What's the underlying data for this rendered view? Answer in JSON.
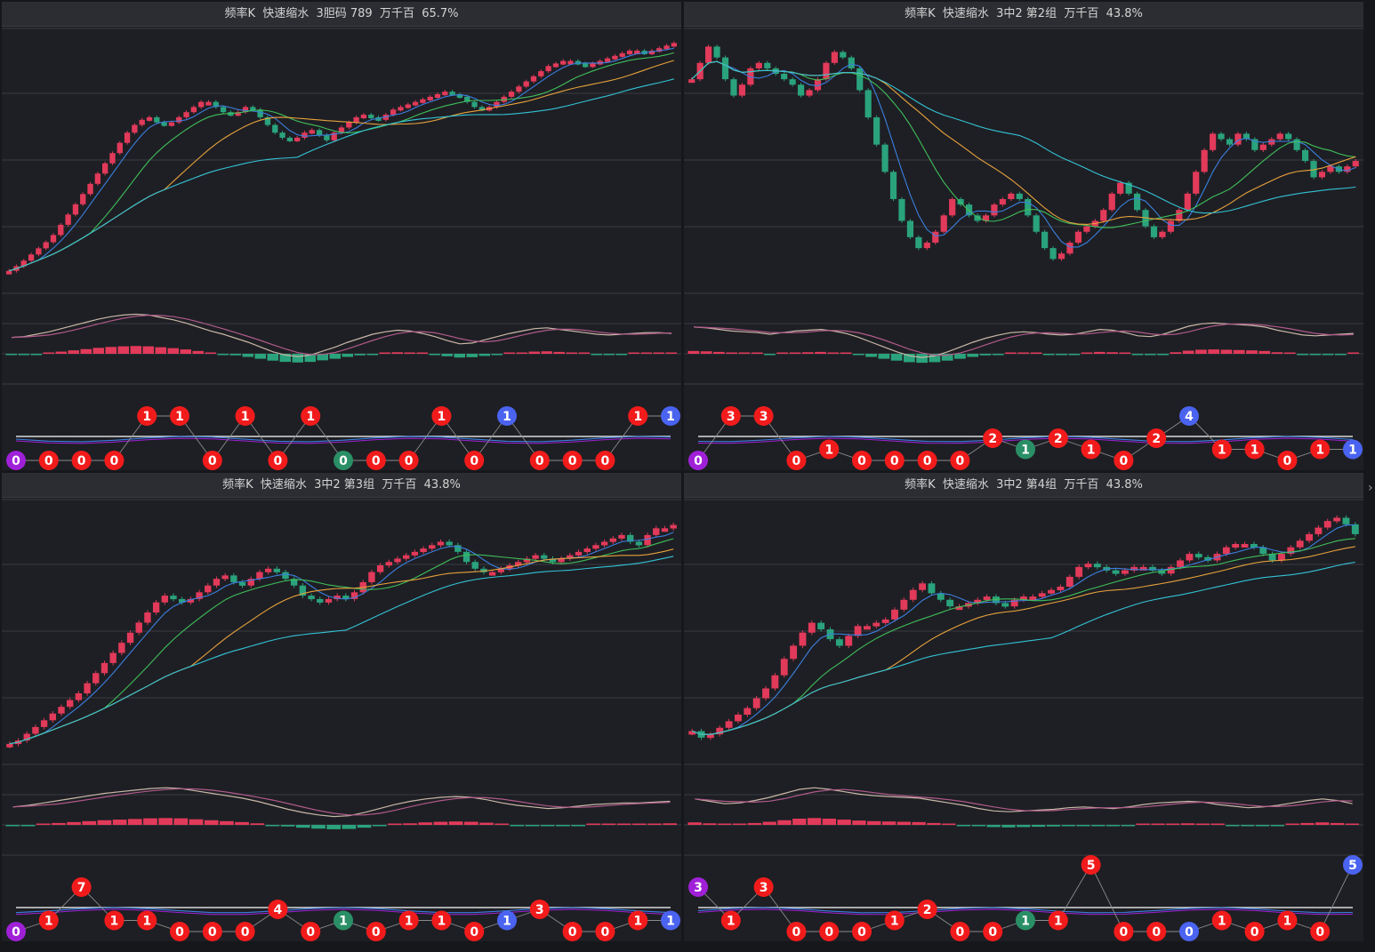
{
  "colors": {
    "up": "#e23a5a",
    "down": "#2aa37c",
    "ma5": "#3b7fe0",
    "ma10": "#3fbf5a",
    "ma20": "#e8a23c",
    "ma60": "#33c3d6",
    "dif": "#c9b8a8",
    "dea": "#b05a8a",
    "ball_red": "#f21b1b",
    "ball_green": "#2a8f66",
    "ball_blue": "#4a63f0",
    "ball_purple": "#a020d8",
    "grid": "#3a3b40",
    "baseline": "#ffffff"
  },
  "panels": [
    {
      "title": "频率K  快速缩水  3胆码 789  万千百  65.7%"
    },
    {
      "title": "频率K  快速缩水  3中2 第2组  万千百  43.8%"
    },
    {
      "title": "频率K  快速缩水  3中2 第3组  万千百  43.8%"
    },
    {
      "title": "频率K  快速缩水  3中2 第4组  万千百  43.8%"
    }
  ],
  "collapse_arrow": "›",
  "chart_data": [
    {
      "type": "candlestick",
      "title": "频率K  快速缩水  3胆码 789  万千百  65.7%",
      "trend": [
        0,
        0.9,
        2,
        3.2,
        4.4,
        5.6,
        7,
        9,
        11,
        13,
        15,
        17,
        19,
        21,
        23,
        25,
        27,
        28.5,
        29.5,
        30,
        29,
        28.5,
        29,
        30,
        31,
        32,
        33,
        33,
        32,
        31,
        30.5,
        31,
        32,
        31.5,
        30,
        28.5,
        27,
        26,
        25.5,
        26,
        27,
        27.5,
        26.5,
        25.5,
        27,
        28,
        29,
        30,
        30.5,
        30,
        29.5,
        30.5,
        31.5,
        32,
        32.5,
        33,
        33.5,
        34,
        34.5,
        35,
        34.5,
        34,
        33,
        32,
        31.5,
        32,
        33,
        34,
        35,
        36,
        37,
        38,
        39,
        40,
        40.5,
        41,
        41,
        40.5,
        40,
        40.5,
        41,
        41.5,
        42,
        42.5,
        43,
        43,
        42.5,
        43,
        43.5,
        44,
        44.5
      ],
      "ylim": [
        -3,
        47
      ],
      "macd": [
        -0.4,
        -0.3,
        0,
        0.3,
        0.7,
        1.1,
        1.5,
        1.9,
        2.2,
        2.4,
        2.5,
        2.4,
        2.1,
        1.8,
        1.4,
        0.9,
        0.4,
        0,
        -0.5,
        -1,
        -1.6,
        -2.2,
        -2.6,
        -2.8,
        -2.6,
        -2.1,
        -1.6,
        -1,
        -0.5,
        0,
        0.3,
        0.5,
        0.4,
        0.1,
        -0.3,
        -0.8,
        -1.2,
        -1.1,
        -0.7,
        -0.3,
        0.1,
        0.4,
        0.7,
        0.8,
        0.6,
        0.4,
        0.2,
        0,
        -0.1,
        0,
        0.1,
        0.2,
        0.2,
        0.1
      ],
      "balls": [
        {
          "v": "0",
          "c": "purple",
          "lvl": 0
        },
        {
          "v": "0",
          "c": "red",
          "lvl": 0
        },
        {
          "v": "0",
          "c": "red",
          "lvl": 0
        },
        {
          "v": "0",
          "c": "red",
          "lvl": 0
        },
        {
          "v": "1",
          "c": "red",
          "lvl": 2
        },
        {
          "v": "1",
          "c": "red",
          "lvl": 2
        },
        {
          "v": "0",
          "c": "red",
          "lvl": 0
        },
        {
          "v": "1",
          "c": "red",
          "lvl": 2
        },
        {
          "v": "0",
          "c": "red",
          "lvl": 0
        },
        {
          "v": "1",
          "c": "red",
          "lvl": 2
        },
        {
          "v": "0",
          "c": "green",
          "lvl": 0
        },
        {
          "v": "0",
          "c": "red",
          "lvl": 0
        },
        {
          "v": "0",
          "c": "red",
          "lvl": 0
        },
        {
          "v": "1",
          "c": "red",
          "lvl": 2
        },
        {
          "v": "0",
          "c": "red",
          "lvl": 0
        },
        {
          "v": "1",
          "c": "blue",
          "lvl": 2
        },
        {
          "v": "0",
          "c": "red",
          "lvl": 0
        },
        {
          "v": "0",
          "c": "red",
          "lvl": 0
        },
        {
          "v": "0",
          "c": "red",
          "lvl": 0
        },
        {
          "v": "1",
          "c": "red",
          "lvl": 2
        },
        {
          "v": "1",
          "c": "blue",
          "lvl": 2
        }
      ]
    },
    {
      "type": "candlestick",
      "title": "频率K  快速缩水  3中2 第2组  万千百  43.8%",
      "trend": [
        38,
        41,
        44,
        42,
        38,
        35,
        37,
        40,
        41,
        40,
        39,
        38,
        37,
        35,
        36,
        38,
        41,
        43,
        42,
        40,
        36,
        31,
        26,
        21,
        16,
        12,
        9,
        7,
        8,
        10,
        13,
        16,
        15,
        13,
        12,
        13,
        15,
        16,
        17,
        16,
        13,
        10,
        7,
        5,
        6,
        8,
        10,
        11,
        12,
        14,
        17,
        19,
        17,
        14,
        11,
        9,
        10,
        12,
        14,
        17,
        21,
        25,
        28,
        27,
        26,
        28,
        27,
        25,
        26,
        27,
        28,
        27,
        25,
        23,
        20,
        21,
        22,
        21,
        22,
        23
      ],
      "ylim": [
        0,
        47
      ],
      "macd": [
        0.9,
        0.8,
        0.6,
        0.4,
        0.3,
        0.2,
        0,
        0.2,
        0.4,
        0.5,
        0.6,
        0.4,
        0.1,
        -0.4,
        -1,
        -1.6,
        -2.2,
        -2.7,
        -2.9,
        -2.7,
        -2.2,
        -1.6,
        -1,
        -0.5,
        -0.1,
        0.2,
        0.3,
        0.2,
        0,
        -0.1,
        0,
        0.3,
        0.6,
        0.5,
        0.2,
        -0.2,
        -0.3,
        0,
        0.5,
        1,
        1.3,
        1.4,
        1.3,
        1.2,
        1.1,
        0.9,
        0.5,
        0.2,
        -0.1,
        -0.2,
        -0.1,
        0,
        0.1
      ],
      "balls": [
        {
          "v": "0",
          "c": "purple",
          "lvl": 0
        },
        {
          "v": "3",
          "c": "red",
          "lvl": 2
        },
        {
          "v": "3",
          "c": "red",
          "lvl": 2
        },
        {
          "v": "0",
          "c": "red",
          "lvl": 0
        },
        {
          "v": "1",
          "c": "red",
          "lvl": 0.5
        },
        {
          "v": "0",
          "c": "red",
          "lvl": 0
        },
        {
          "v": "0",
          "c": "red",
          "lvl": 0
        },
        {
          "v": "0",
          "c": "red",
          "lvl": 0
        },
        {
          "v": "0",
          "c": "red",
          "lvl": 0
        },
        {
          "v": "2",
          "c": "red",
          "lvl": 1
        },
        {
          "v": "1",
          "c": "green",
          "lvl": 0.5
        },
        {
          "v": "2",
          "c": "red",
          "lvl": 1
        },
        {
          "v": "1",
          "c": "red",
          "lvl": 0.5
        },
        {
          "v": "0",
          "c": "red",
          "lvl": 0
        },
        {
          "v": "2",
          "c": "red",
          "lvl": 1
        },
        {
          "v": "4",
          "c": "blue",
          "lvl": 2
        },
        {
          "v": "1",
          "c": "red",
          "lvl": 0.5
        },
        {
          "v": "1",
          "c": "red",
          "lvl": 0.5
        },
        {
          "v": "0",
          "c": "red",
          "lvl": 0
        },
        {
          "v": "1",
          "c": "red",
          "lvl": 0.5
        },
        {
          "v": "1",
          "c": "blue",
          "lvl": 0.5
        }
      ]
    },
    {
      "type": "candlestick",
      "title": "频率K  快速缩水  3中2 第3组  万千百  43.8%",
      "trend": [
        0,
        0.5,
        1.5,
        2.5,
        3.5,
        4.5,
        5.5,
        6.5,
        7.5,
        9,
        10.5,
        12,
        13.5,
        15,
        16.5,
        18,
        19.5,
        21,
        22,
        21.5,
        21,
        21.5,
        22.5,
        23.5,
        24.5,
        25,
        24,
        23.5,
        24.5,
        25.5,
        26,
        25.5,
        24.5,
        23.5,
        22,
        21.5,
        21,
        21.5,
        22,
        21.5,
        22.5,
        24,
        25.5,
        26.5,
        27,
        27.5,
        28,
        28.5,
        29,
        29.5,
        30,
        29.5,
        28.5,
        27,
        26,
        25.5,
        25.5,
        26,
        26.5,
        27,
        27.5,
        28,
        27.5,
        27,
        27.5,
        28,
        28.5,
        29,
        29.5,
        30,
        30.5,
        31,
        30,
        29.5,
        31,
        32,
        32,
        32.5
      ],
      "ylim": [
        -2,
        36
      ],
      "macd": [
        -0.2,
        0,
        0.3,
        0.6,
        0.9,
        1.2,
        1.5,
        1.7,
        1.9,
        2.1,
        2.2,
        2.1,
        1.8,
        1.5,
        1.2,
        0.9,
        0.5,
        0,
        -0.5,
        -0.9,
        -1.2,
        -1.4,
        -1.3,
        -0.9,
        -0.4,
        0.1,
        0.5,
        0.8,
        1,
        1.1,
        1,
        0.7,
        0.3,
        0,
        -0.2,
        -0.4,
        -0.3,
        -0.1,
        0.1,
        0.2,
        0.3,
        0.3,
        0.4,
        0.5
      ],
      "balls": [
        {
          "v": "0",
          "c": "purple",
          "lvl": 0
        },
        {
          "v": "1",
          "c": "red",
          "lvl": 0.5
        },
        {
          "v": "7",
          "c": "red",
          "lvl": 2
        },
        {
          "v": "1",
          "c": "red",
          "lvl": 0.5
        },
        {
          "v": "1",
          "c": "red",
          "lvl": 0.5
        },
        {
          "v": "0",
          "c": "red",
          "lvl": 0
        },
        {
          "v": "0",
          "c": "red",
          "lvl": 0
        },
        {
          "v": "0",
          "c": "red",
          "lvl": 0
        },
        {
          "v": "4",
          "c": "red",
          "lvl": 1
        },
        {
          "v": "0",
          "c": "red",
          "lvl": 0
        },
        {
          "v": "1",
          "c": "green",
          "lvl": 0.5
        },
        {
          "v": "0",
          "c": "red",
          "lvl": 0
        },
        {
          "v": "1",
          "c": "red",
          "lvl": 0.5
        },
        {
          "v": "1",
          "c": "red",
          "lvl": 0.5
        },
        {
          "v": "0",
          "c": "red",
          "lvl": 0
        },
        {
          "v": "1",
          "c": "blue",
          "lvl": 0.5
        },
        {
          "v": "3",
          "c": "red",
          "lvl": 1
        },
        {
          "v": "0",
          "c": "red",
          "lvl": 0
        },
        {
          "v": "0",
          "c": "red",
          "lvl": 0
        },
        {
          "v": "1",
          "c": "red",
          "lvl": 0.5
        },
        {
          "v": "1",
          "c": "blue",
          "lvl": 0.5
        }
      ]
    },
    {
      "type": "candlestick",
      "title": "频率K  快速缩水  3中2 第4组  万千百  43.8%",
      "trend": [
        0,
        -1,
        -0.5,
        0.5,
        1.5,
        2.5,
        3.5,
        5,
        6.5,
        8.5,
        11,
        13,
        15,
        16.5,
        15.5,
        14,
        13,
        14.5,
        16,
        16,
        16.5,
        17,
        18.5,
        20,
        21.5,
        22.5,
        21,
        20,
        19,
        19,
        19.5,
        20,
        20.5,
        19.5,
        19,
        20,
        20.5,
        20.5,
        21,
        21.5,
        22,
        23.5,
        25,
        25.5,
        25,
        24.5,
        24,
        24.5,
        25,
        25,
        24.5,
        24,
        25,
        26,
        27,
        26.5,
        26,
        27,
        28,
        28.5,
        28.5,
        28,
        27,
        26,
        27,
        28,
        29,
        30,
        31,
        32,
        32.5,
        31.5,
        30
      ],
      "ylim": [
        -4,
        35
      ],
      "macd": [
        0.8,
        0.5,
        0.2,
        0.3,
        0.6,
        1,
        1.5,
        2,
        2.2,
        2,
        1.7,
        1.4,
        1.2,
        1.1,
        1,
        0.9,
        0.6,
        0.3,
        0,
        -0.4,
        -0.7,
        -0.8,
        -0.7,
        -0.6,
        -0.5,
        -0.3,
        -0.2,
        -0.3,
        -0.4,
        -0.2,
        0.1,
        0.3,
        0.4,
        0.5,
        0.4,
        0.1,
        -0.1,
        -0.3,
        -0.2,
        0,
        0.3,
        0.6,
        0.8,
        0.6,
        0.2
      ],
      "balls": [
        {
          "v": "3",
          "c": "purple",
          "lvl": 2
        },
        {
          "v": "1",
          "c": "red",
          "lvl": 0.5
        },
        {
          "v": "3",
          "c": "red",
          "lvl": 2
        },
        {
          "v": "0",
          "c": "red",
          "lvl": 0
        },
        {
          "v": "0",
          "c": "red",
          "lvl": 0
        },
        {
          "v": "0",
          "c": "red",
          "lvl": 0
        },
        {
          "v": "1",
          "c": "red",
          "lvl": 0.5
        },
        {
          "v": "2",
          "c": "red",
          "lvl": 1
        },
        {
          "v": "0",
          "c": "red",
          "lvl": 0
        },
        {
          "v": "0",
          "c": "red",
          "lvl": 0
        },
        {
          "v": "1",
          "c": "green",
          "lvl": 0.5
        },
        {
          "v": "1",
          "c": "red",
          "lvl": 0.5
        },
        {
          "v": "5",
          "c": "red",
          "lvl": 3
        },
        {
          "v": "0",
          "c": "red",
          "lvl": 0
        },
        {
          "v": "0",
          "c": "red",
          "lvl": 0
        },
        {
          "v": "0",
          "c": "blue",
          "lvl": 0
        },
        {
          "v": "1",
          "c": "red",
          "lvl": 0.5
        },
        {
          "v": "0",
          "c": "red",
          "lvl": 0
        },
        {
          "v": "1",
          "c": "red",
          "lvl": 0.5
        },
        {
          "v": "0",
          "c": "red",
          "lvl": 0
        },
        {
          "v": "5",
          "c": "blue",
          "lvl": 3
        }
      ]
    }
  ]
}
